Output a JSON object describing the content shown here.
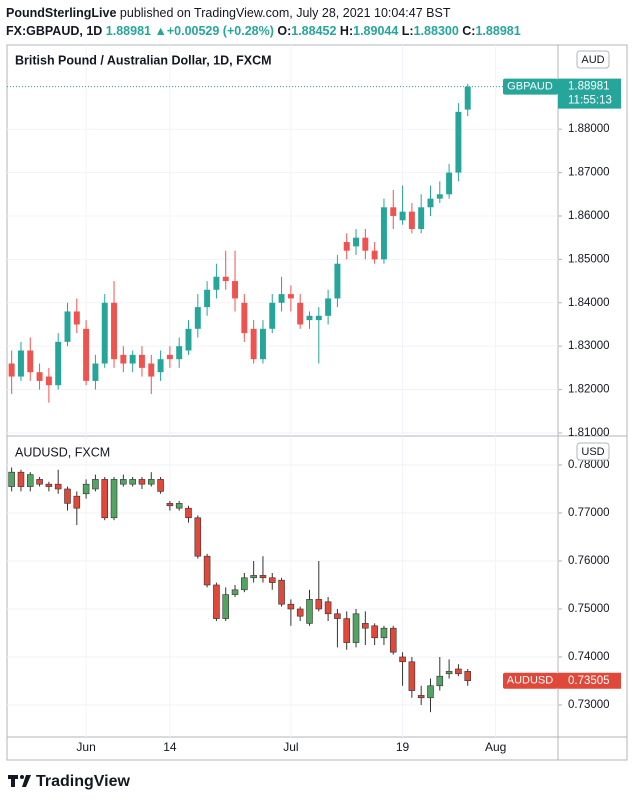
{
  "header": {
    "author": "PoundSterlingLive",
    "published": "published on TradingView.com, July 28, 2021 10:04:47 BST",
    "symbol": "FX:GBPAUD, 1D",
    "last": "1.88981",
    "change": "+0.00529 (+0.28%)",
    "o_label": "O:",
    "o": "1.88452",
    "h_label": "H:",
    "h": "1.89044",
    "l_label": "L:",
    "l": "1.88300",
    "c_label": "C:",
    "c": "1.88981"
  },
  "chart_data": [
    {
      "type": "candlestick",
      "title": "British Pound / Australian Dollar, 1D, FXCM",
      "currency": "AUD",
      "symbol": "GBPAUD",
      "countdown": "11:55:13",
      "up_color": "#26a69a",
      "down_color": "#ef5350",
      "grid": true,
      "ylim": [
        1.8093,
        1.8994
      ],
      "yticks": [
        {
          "value": 1.81,
          "label": "1.81000"
        },
        {
          "value": 1.82,
          "label": "1.82000"
        },
        {
          "value": 1.83,
          "label": "1.83000"
        },
        {
          "value": 1.84,
          "label": "1.84000"
        },
        {
          "value": 1.85,
          "label": "1.85000"
        },
        {
          "value": 1.86,
          "label": "1.86000"
        },
        {
          "value": 1.87,
          "label": "1.87000"
        },
        {
          "value": 1.88,
          "label": "1.88000"
        }
      ],
      "open": [
        1.826,
        1.823,
        1.829,
        1.824,
        1.823,
        1.821,
        1.831,
        1.838,
        1.834,
        1.822,
        1.826,
        1.84,
        1.828,
        1.826,
        1.828,
        1.826,
        1.824,
        1.828,
        1.827,
        1.829,
        1.834,
        1.839,
        1.843,
        1.846,
        1.845,
        1.84,
        1.834,
        1.827,
        1.834,
        1.84,
        1.842,
        1.84,
        1.836,
        1.836,
        1.837,
        1.841,
        1.854,
        1.853,
        1.855,
        1.852,
        1.85,
        1.862,
        1.859,
        1.861,
        1.857,
        1.862,
        1.864,
        1.865,
        1.87,
        1.88452
      ],
      "high": [
        1.829,
        1.831,
        1.832,
        1.826,
        1.825,
        1.833,
        1.84,
        1.841,
        1.836,
        1.828,
        1.842,
        1.845,
        1.83,
        1.829,
        1.83,
        1.828,
        1.829,
        1.83,
        1.832,
        1.836,
        1.842,
        1.845,
        1.849,
        1.852,
        1.852,
        1.842,
        1.836,
        1.836,
        1.842,
        1.846,
        1.844,
        1.842,
        1.838,
        1.839,
        1.843,
        1.851,
        1.856,
        1.857,
        1.857,
        1.854,
        1.864,
        1.866,
        1.867,
        1.863,
        1.865,
        1.867,
        1.868,
        1.872,
        1.886,
        1.89044
      ],
      "low": [
        1.819,
        1.822,
        1.822,
        1.82,
        1.817,
        1.82,
        1.83,
        1.833,
        1.821,
        1.82,
        1.825,
        1.825,
        1.824,
        1.824,
        1.823,
        1.819,
        1.822,
        1.825,
        1.825,
        1.828,
        1.832,
        1.837,
        1.841,
        1.843,
        1.838,
        1.831,
        1.826,
        1.826,
        1.833,
        1.838,
        1.838,
        1.834,
        1.834,
        1.826,
        1.835,
        1.839,
        1.85,
        1.851,
        1.85,
        1.849,
        1.849,
        1.857,
        1.858,
        1.856,
        1.856,
        1.86,
        1.863,
        1.864,
        1.868,
        1.883
      ],
      "close": [
        1.823,
        1.829,
        1.824,
        1.822,
        1.821,
        1.831,
        1.838,
        1.835,
        1.822,
        1.826,
        1.84,
        1.827,
        1.826,
        1.828,
        1.825,
        1.823,
        1.827,
        1.827,
        1.83,
        1.834,
        1.839,
        1.843,
        1.846,
        1.845,
        1.841,
        1.833,
        1.827,
        1.834,
        1.84,
        1.842,
        1.841,
        1.835,
        1.837,
        1.837,
        1.841,
        1.849,
        1.852,
        1.855,
        1.852,
        1.85,
        1.862,
        1.86,
        1.861,
        1.857,
        1.862,
        1.864,
        1.865,
        1.87,
        1.884,
        1.88981
      ]
    },
    {
      "type": "candlestick",
      "title": "AUDUSD, FXCM",
      "currency": "USD",
      "symbol": "AUDUSD",
      "up_color": "#53a462",
      "down_color": "#e0483a",
      "grid": true,
      "ylim": [
        0.72333,
        0.78583
      ],
      "yticks": [
        {
          "value": 0.73,
          "label": "0.73000"
        },
        {
          "value": 0.74,
          "label": "0.74000"
        },
        {
          "value": 0.75,
          "label": "0.75000"
        },
        {
          "value": 0.76,
          "label": "0.76000"
        },
        {
          "value": 0.77,
          "label": "0.77000"
        },
        {
          "value": 0.78,
          "label": "0.78000"
        }
      ],
      "xlim": [
        -0.5,
        58.7
      ],
      "xticks": [
        {
          "value": 8,
          "label": "Jun"
        },
        {
          "value": 17,
          "label": "14"
        },
        {
          "value": 30,
          "label": "Jul"
        },
        {
          "value": 42,
          "label": "19"
        },
        {
          "value": 52,
          "label": "Aug"
        }
      ],
      "open": [
        0.7755,
        0.7785,
        0.7755,
        0.777,
        0.776,
        0.776,
        0.775,
        0.7735,
        0.774,
        0.775,
        0.777,
        0.769,
        0.776,
        0.776,
        0.777,
        0.776,
        0.777,
        0.772,
        0.771,
        0.771,
        0.769,
        0.761,
        0.755,
        0.748,
        0.753,
        0.754,
        0.7565,
        0.757,
        0.7565,
        0.756,
        0.751,
        0.75,
        0.747,
        0.752,
        0.7515,
        0.749,
        0.748,
        0.743,
        0.747,
        0.7465,
        0.744,
        0.746,
        0.74,
        0.739,
        0.732,
        0.7315,
        0.734,
        0.7365,
        0.7375,
        0.737
      ],
      "high": [
        0.7795,
        0.779,
        0.7785,
        0.7775,
        0.7765,
        0.779,
        0.7755,
        0.7745,
        0.777,
        0.778,
        0.7775,
        0.7775,
        0.778,
        0.7775,
        0.7775,
        0.7785,
        0.7775,
        0.7725,
        0.7725,
        0.7715,
        0.7695,
        0.7615,
        0.7555,
        0.7545,
        0.755,
        0.7575,
        0.76,
        0.761,
        0.7575,
        0.7565,
        0.752,
        0.7505,
        0.754,
        0.76,
        0.7525,
        0.75,
        0.7495,
        0.75,
        0.7495,
        0.747,
        0.7465,
        0.7465,
        0.741,
        0.74,
        0.734,
        0.7355,
        0.74,
        0.7395,
        0.7385,
        0.7375
      ],
      "low": [
        0.7745,
        0.7745,
        0.7745,
        0.7755,
        0.7745,
        0.774,
        0.7705,
        0.7675,
        0.773,
        0.7745,
        0.7685,
        0.7685,
        0.7755,
        0.7755,
        0.775,
        0.7755,
        0.774,
        0.7705,
        0.7705,
        0.768,
        0.7605,
        0.7545,
        0.7475,
        0.7475,
        0.7525,
        0.7535,
        0.7555,
        0.7555,
        0.754,
        0.7505,
        0.7465,
        0.7475,
        0.7465,
        0.7495,
        0.7475,
        0.742,
        0.7415,
        0.742,
        0.7425,
        0.7425,
        0.7425,
        0.7405,
        0.734,
        0.7315,
        0.73,
        0.7285,
        0.733,
        0.7355,
        0.736,
        0.734
      ],
      "close": [
        0.7785,
        0.7755,
        0.778,
        0.776,
        0.7755,
        0.775,
        0.772,
        0.771,
        0.776,
        0.777,
        0.769,
        0.777,
        0.777,
        0.777,
        0.776,
        0.777,
        0.7745,
        0.7715,
        0.772,
        0.769,
        0.761,
        0.755,
        0.748,
        0.753,
        0.754,
        0.7565,
        0.757,
        0.7565,
        0.7555,
        0.751,
        0.75,
        0.7485,
        0.752,
        0.75,
        0.749,
        0.748,
        0.743,
        0.749,
        0.746,
        0.744,
        0.746,
        0.741,
        0.739,
        0.733,
        0.7315,
        0.734,
        0.736,
        0.737,
        0.7365,
        0.73505
      ]
    }
  ],
  "footer": {
    "brand": "TradingView"
  }
}
